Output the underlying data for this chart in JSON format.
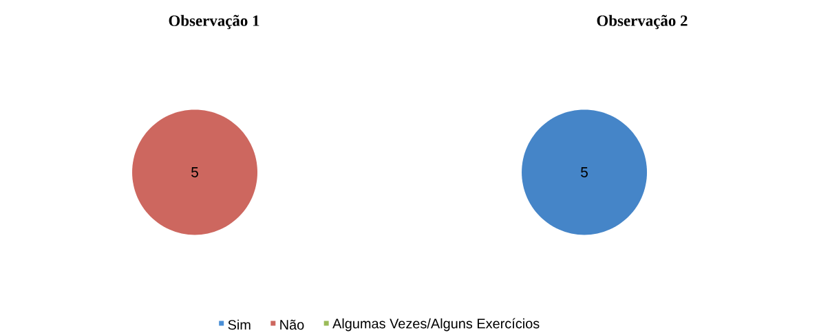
{
  "chart_data": [
    {
      "type": "pie",
      "title": "Observação 1",
      "categories": [
        "Sim",
        "Não",
        "Algumas Vezes/Alguns Exercícios"
      ],
      "values": [
        0,
        5,
        0
      ],
      "colors": [
        "#4a8fd6",
        "#cd675f",
        "#9bbb59"
      ],
      "data_labels": true,
      "legend": "bottom"
    },
    {
      "type": "pie",
      "title": "Observação 2",
      "categories": [
        null,
        null,
        null
      ],
      "values": [
        5,
        0,
        0
      ],
      "colors": [
        "#4585c8",
        "#cd675f",
        "#9bbb59"
      ],
      "data_labels": true
    }
  ]
}
